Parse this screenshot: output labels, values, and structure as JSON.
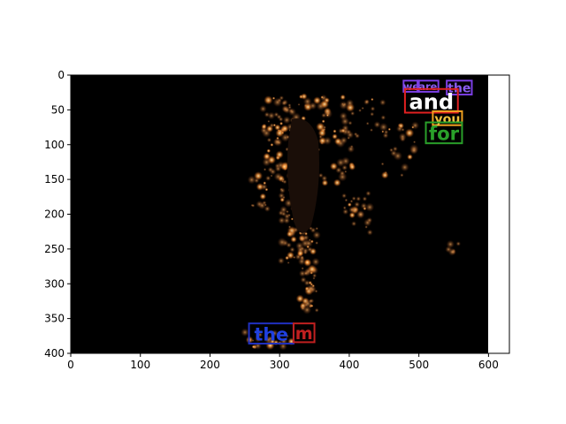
{
  "figure": {
    "x_ticks": [
      "0",
      "100",
      "200",
      "300",
      "400",
      "500",
      "600"
    ],
    "y_ticks": [
      "0",
      "50",
      "100",
      "150",
      "200",
      "250",
      "300",
      "350",
      "400"
    ],
    "x_range": [
      0,
      630
    ],
    "y_range": [
      400,
      0
    ],
    "image_extent": [
      0,
      600,
      400,
      0
    ],
    "image_description_icon": "night-satellite-city-lights",
    "colors": {
      "background": "#000000",
      "lights": "#ff9a3c",
      "bright_lights": "#ffe0a8"
    }
  },
  "annotations": [
    {
      "text": "we",
      "box_color": "#7b3fe4",
      "text_color": "#8a5cf0",
      "x0": 478,
      "y0": 8,
      "x1": 500,
      "y1": 24
    },
    {
      "text": "are",
      "box_color": "#7b3fe4",
      "text_color": "#8a5cf0",
      "x0": 498,
      "y0": 8,
      "x1": 528,
      "y1": 24
    },
    {
      "text": "the",
      "box_color": "#7b3fe4",
      "text_color": "#8a5cf0",
      "x0": 540,
      "y0": 8,
      "x1": 576,
      "y1": 28
    },
    {
      "text": "and",
      "box_color": "#e02020",
      "text_color": "#ffffff",
      "x0": 480,
      "y0": 20,
      "x1": 556,
      "y1": 54
    },
    {
      "text": "you",
      "box_color": "#f0a020",
      "text_color": "#f0c040",
      "x0": 520,
      "y0": 52,
      "x1": 562,
      "y1": 72
    },
    {
      "text": "for",
      "box_color": "#2aa02a",
      "text_color": "#2aa02a",
      "x0": 510,
      "y0": 68,
      "x1": 562,
      "y1": 98
    },
    {
      "text": "the",
      "box_color": "#2030c0",
      "text_color": "#2040e0",
      "x0": 256,
      "y0": 357,
      "x1": 320,
      "y1": 386
    },
    {
      "text": "m",
      "box_color": "#c02020",
      "text_color": "#c02020",
      "x0": 320,
      "y0": 357,
      "x1": 350,
      "y1": 384
    }
  ]
}
